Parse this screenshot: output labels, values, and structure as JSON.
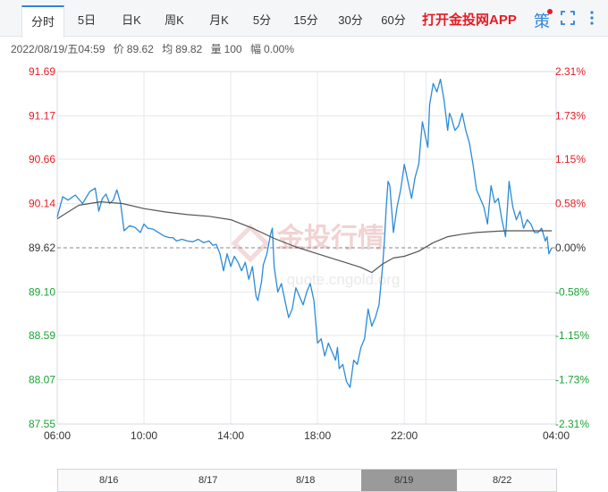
{
  "tabs": [
    {
      "label": "分时",
      "active": true
    },
    {
      "label": "5日"
    },
    {
      "label": "日K"
    },
    {
      "label": "周K"
    },
    {
      "label": "月K"
    },
    {
      "label": "5分"
    },
    {
      "label": "15分"
    },
    {
      "label": "30分"
    },
    {
      "label": "60分"
    }
  ],
  "app_link": "打开金投网APP",
  "tools": {
    "strategy_label": "策",
    "strategy_badge_color": "#e51c23",
    "fullscreen_icon": "fullscreen-icon",
    "more_icon": "more-vertical-icon"
  },
  "info": {
    "datetime": "2022/08/19/五04:59",
    "price_label": "价",
    "price": "89.62",
    "avg_label": "均",
    "avg": "89.82",
    "volume_label": "量",
    "volume": "100",
    "change_label": "幅",
    "change": "0.00%"
  },
  "watermark": {
    "text": "金投行情",
    "url": "quote.cngold.org"
  },
  "navigator": {
    "labels": [
      "8/16",
      "8/17",
      "8/18",
      "8/19",
      "8/22"
    ]
  },
  "chart_data": {
    "type": "line",
    "title": "",
    "xlabel": "",
    "ylabel": "",
    "ylim": [
      87.55,
      91.69
    ],
    "prev_close": 89.62,
    "yticks": [
      91.69,
      91.17,
      90.66,
      90.14,
      89.62,
      89.1,
      88.59,
      88.07,
      87.55
    ],
    "yticks_right": [
      "2.31%",
      "1.73%",
      "1.15%",
      "0.58%",
      "0.00%",
      "-0.58%",
      "-1.15%",
      "-1.73%",
      "-2.31%"
    ],
    "xticks": [
      "06:00",
      "10:00",
      "14:00",
      "18:00",
      "22:00",
      "04:00"
    ],
    "xrange": [
      0,
      1380
    ],
    "xtick_minutes": [
      0,
      240,
      480,
      720,
      960,
      1380
    ],
    "colors": {
      "price": "#2b8bd6",
      "average": "#555555",
      "up": "#e51c23",
      "down": "#1aa334",
      "neutral": "#333333",
      "grid": "#e6e9ee"
    },
    "series": [
      {
        "name": "价",
        "x": [
          0,
          15,
          30,
          50,
          70,
          90,
          105,
          115,
          125,
          135,
          145,
          155,
          165,
          175,
          185,
          200,
          215,
          230,
          240,
          250,
          265,
          280,
          295,
          310,
          320,
          330,
          345,
          360,
          375,
          390,
          405,
          420,
          430,
          440,
          450,
          460,
          470,
          480,
          490,
          500,
          510,
          520,
          530,
          540,
          550,
          555,
          565,
          570,
          580,
          590,
          595,
          600,
          610,
          620,
          630,
          640,
          650,
          660,
          670,
          680,
          690,
          700,
          710,
          720,
          730,
          740,
          750,
          760,
          770,
          775,
          780,
          790,
          800,
          810,
          820,
          830,
          840,
          850,
          860,
          870,
          880,
          890,
          900,
          905,
          910,
          915,
          920,
          930,
          940,
          950,
          960,
          970,
          980,
          990,
          1000,
          1010,
          1020,
          1025,
          1030,
          1040,
          1050,
          1060,
          1070,
          1080,
          1085,
          1090,
          1100,
          1110,
          1120,
          1130,
          1140,
          1150,
          1160,
          1170,
          1180,
          1190,
          1200,
          1210,
          1220,
          1230,
          1240,
          1250,
          1260,
          1270,
          1280,
          1290,
          1300,
          1310,
          1320,
          1330,
          1340,
          1350,
          1355,
          1360,
          1368
        ],
        "values": [
          89.98,
          90.22,
          90.18,
          90.24,
          90.14,
          90.28,
          90.32,
          90.05,
          90.2,
          90.25,
          90.14,
          90.18,
          90.3,
          90.15,
          89.82,
          89.88,
          89.86,
          89.8,
          89.9,
          89.85,
          89.84,
          89.8,
          89.76,
          89.74,
          89.74,
          89.7,
          89.72,
          89.7,
          89.69,
          89.72,
          89.68,
          89.7,
          89.65,
          89.66,
          89.55,
          89.35,
          89.55,
          89.4,
          89.52,
          89.45,
          89.35,
          89.45,
          89.25,
          89.4,
          89.05,
          89.0,
          89.22,
          89.42,
          89.55,
          89.78,
          89.85,
          89.4,
          89.1,
          89.2,
          89.0,
          88.8,
          88.9,
          89.15,
          89.05,
          88.95,
          89.1,
          89.2,
          89.0,
          88.5,
          88.55,
          88.35,
          88.5,
          88.4,
          88.3,
          88.45,
          88.2,
          88.25,
          88.05,
          87.98,
          88.3,
          88.25,
          88.45,
          88.55,
          88.9,
          88.7,
          88.8,
          88.95,
          89.4,
          89.7,
          90.1,
          90.4,
          90.35,
          89.8,
          90.1,
          90.3,
          90.6,
          90.4,
          90.2,
          90.45,
          90.6,
          91.1,
          90.9,
          90.8,
          91.3,
          91.55,
          91.45,
          91.6,
          91.35,
          91.0,
          91.2,
          91.15,
          91.0,
          91.05,
          91.2,
          91.0,
          90.85,
          90.6,
          90.3,
          90.2,
          90.1,
          89.9,
          90.35,
          90.15,
          90.2,
          89.95,
          89.75,
          90.4,
          90.1,
          89.95,
          90.05,
          89.85,
          89.95,
          89.9,
          89.8,
          89.8,
          89.85,
          89.7,
          89.75,
          89.55,
          89.62
        ]
      },
      {
        "name": "均",
        "x": [
          0,
          60,
          120,
          180,
          240,
          300,
          360,
          420,
          480,
          540,
          600,
          660,
          720,
          780,
          840,
          870,
          900,
          930,
          960,
          1000,
          1040,
          1080,
          1120,
          1160,
          1200,
          1240,
          1280,
          1320,
          1368
        ],
        "values": [
          89.96,
          90.12,
          90.16,
          90.14,
          90.08,
          90.04,
          90.01,
          89.99,
          89.95,
          89.85,
          89.73,
          89.63,
          89.55,
          89.47,
          89.39,
          89.33,
          89.43,
          89.5,
          89.52,
          89.58,
          89.68,
          89.75,
          89.78,
          89.8,
          89.81,
          89.82,
          89.82,
          89.82,
          89.82
        ]
      }
    ]
  }
}
